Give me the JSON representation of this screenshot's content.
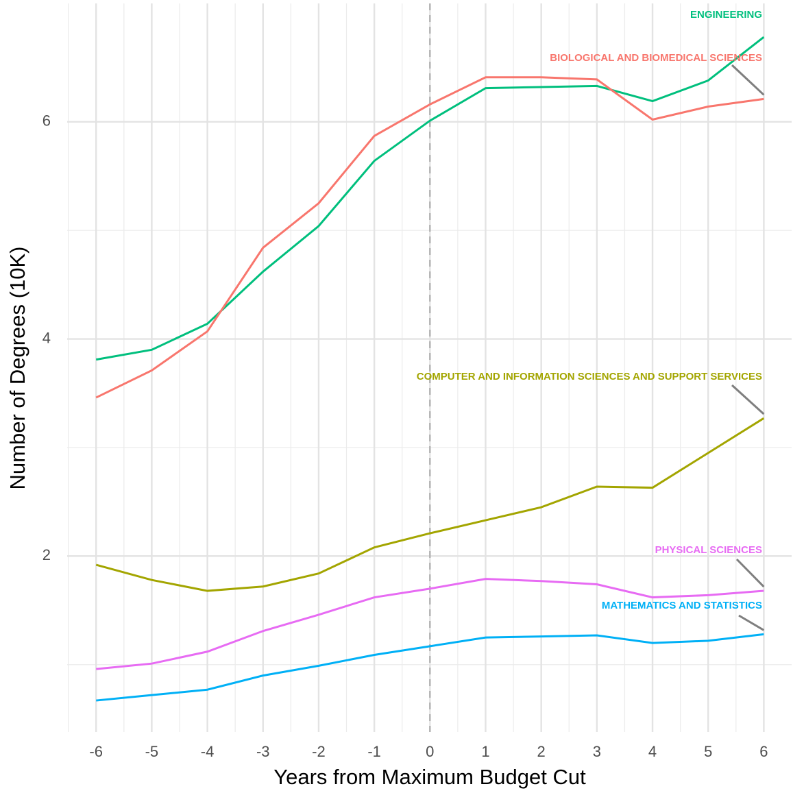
{
  "chart_data": {
    "type": "line",
    "x_label": "Years from Maximum Budget Cut",
    "y_label": "Number of Degrees (10K)",
    "x": [
      -6,
      -5,
      -4,
      -3,
      -2,
      -1,
      0,
      1,
      2,
      3,
      4,
      5,
      6
    ],
    "xlim": [
      -6.52,
      6.5
    ],
    "ylim": [
      0.38,
      7.09
    ],
    "xticks": [
      -6,
      -5,
      -4,
      -3,
      -2,
      -1,
      0,
      1,
      2,
      3,
      4,
      5,
      6
    ],
    "yticks": [
      2,
      4,
      6
    ],
    "x_minor_ticks": [
      -6.5,
      -5.5,
      -4.5,
      -3.5,
      -2.5,
      -1.5,
      -0.5,
      0.5,
      1.5,
      2.5,
      3.5,
      4.5,
      5.5
    ],
    "y_minor_ticks": [
      1,
      3,
      5
    ],
    "grid": true,
    "vline": 0,
    "series": [
      {
        "name": "ENGINEERING",
        "color": "#00BF7D",
        "values": [
          3.81,
          3.9,
          4.14,
          4.62,
          5.04,
          5.64,
          6.01,
          6.31,
          6.32,
          6.33,
          6.19,
          6.38,
          6.78
        ]
      },
      {
        "name": "BIOLOGICAL AND BIOMEDICAL SCIENCES",
        "color": "#F8766D",
        "values": [
          3.46,
          3.71,
          4.07,
          4.84,
          5.25,
          5.87,
          6.16,
          6.41,
          6.41,
          6.39,
          6.02,
          6.14,
          6.21
        ]
      },
      {
        "name": "COMPUTER AND INFORMATION SCIENCES AND SUPPORT SERVICES",
        "color": "#A3A500",
        "values": [
          1.92,
          1.78,
          1.68,
          1.72,
          1.84,
          2.08,
          2.21,
          2.33,
          2.45,
          2.64,
          2.63,
          2.95,
          3.27
        ]
      },
      {
        "name": "PHYSICAL SCIENCES",
        "color": "#E76BF3",
        "values": [
          0.96,
          1.01,
          1.12,
          1.31,
          1.46,
          1.62,
          1.7,
          1.79,
          1.77,
          1.74,
          1.62,
          1.64,
          1.68
        ]
      },
      {
        "name": "MATHEMATICS AND STATISTICS",
        "color": "#00B0F6",
        "values": [
          0.67,
          0.72,
          0.77,
          0.9,
          0.99,
          1.09,
          1.17,
          1.25,
          1.26,
          1.27,
          1.2,
          1.22,
          1.28
        ]
      }
    ]
  }
}
